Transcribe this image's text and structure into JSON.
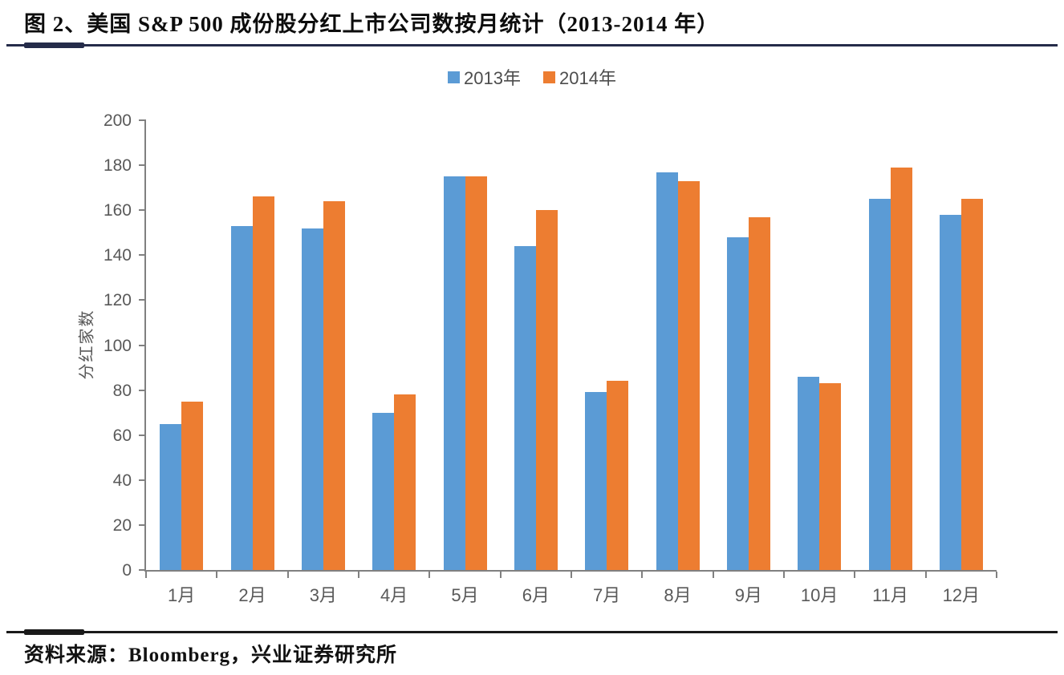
{
  "page": {
    "figure_title": "图 2、美国 S&P 500 成份股分红上市公司数按月统计（2013-2014 年）",
    "source_note": "资料来源：Bloomberg，兴业证券研究所"
  },
  "colors": {
    "series_2013": "#5B9BD5",
    "series_2014": "#ED7D31",
    "axis_line": "#808080",
    "axis_text": "#595959",
    "header_rule": "#252c4a",
    "footer_rule": "#1a1a1a"
  },
  "chart_data": {
    "type": "bar",
    "title": "",
    "xlabel": "",
    "ylabel": "分红家数",
    "ylim": [
      0,
      200
    ],
    "ytick_step": 20,
    "yticks": [
      0,
      20,
      40,
      60,
      80,
      100,
      120,
      140,
      160,
      180,
      200
    ],
    "grid": false,
    "legend_position": "top-center",
    "categories": [
      "1月",
      "2月",
      "3月",
      "4月",
      "5月",
      "6月",
      "7月",
      "8月",
      "9月",
      "10月",
      "11月",
      "12月"
    ],
    "series": [
      {
        "name": "2013年",
        "color": "#5B9BD5",
        "values": [
          65,
          153,
          152,
          70,
          175,
          144,
          79,
          177,
          148,
          86,
          165,
          158
        ]
      },
      {
        "name": "2014年",
        "color": "#ED7D31",
        "values": [
          75,
          166,
          164,
          78,
          175,
          160,
          84,
          173,
          157,
          83,
          179,
          165
        ]
      }
    ]
  }
}
